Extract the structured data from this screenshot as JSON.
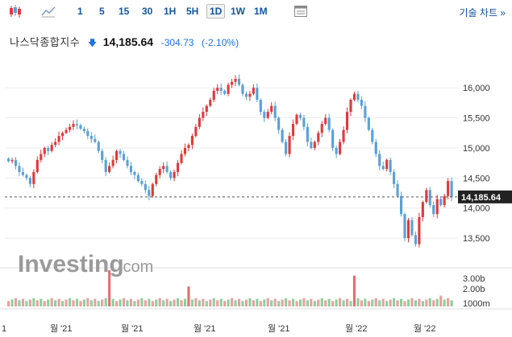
{
  "toolbar": {
    "chart_type_icon": "candlestick-icon",
    "area_chart_icon": "area-chart-icon",
    "intervals": [
      "1",
      "5",
      "15",
      "30",
      "1H",
      "5H",
      "1D",
      "1W",
      "1M"
    ],
    "active_interval": "1D",
    "table_icon": "data-table-icon",
    "tech_chart_label": "기술 차트 »"
  },
  "quote": {
    "name": "나스닥종합지수",
    "direction_icon": "down-arrow-icon",
    "price": "14,185.64",
    "change": "-304.73",
    "change_pct": "(-2.10%)"
  },
  "colors": {
    "up": "#e03a3a",
    "down": "#5aa0d8",
    "volume": "#8fcf9c",
    "volume_spike": "#e07070",
    "price_tag": "#222222"
  },
  "watermark": {
    "brand": "Investing",
    "suffix": ".com"
  },
  "chart_data": {
    "type": "candlestick",
    "y_ticks": [
      "16,000",
      "15,500",
      "15,000",
      "14,500",
      "14,000",
      "13,500"
    ],
    "ylim": [
      13100,
      16350
    ],
    "current_price_label": "14,185.64",
    "volume_ticks": [
      "3.00b",
      "2.00b",
      "1000m"
    ],
    "x_ticks": [
      "1",
      "월 '21",
      "월 '21",
      "월 '21",
      "월 '21",
      "월 '22",
      "월 '22"
    ],
    "closes": [
      14780,
      14800,
      14700,
      14600,
      14550,
      14500,
      14400,
      14600,
      14800,
      14900,
      15000,
      14950,
      15050,
      15100,
      15200,
      15250,
      15300,
      15350,
      15400,
      15380,
      15320,
      15280,
      15200,
      15150,
      15100,
      14950,
      14800,
      14600,
      14700,
      14800,
      14950,
      14900,
      14800,
      14700,
      14600,
      14550,
      14450,
      14400,
      14300,
      14200,
      14400,
      14550,
      14650,
      14700,
      14600,
      14500,
      14600,
      14750,
      14900,
      15000,
      15050,
      15200,
      15350,
      15500,
      15600,
      15700,
      15800,
      15950,
      16000,
      15950,
      15900,
      16050,
      16100,
      16150,
      16050,
      15900,
      15850,
      15900,
      16000,
      15800,
      15600,
      15500,
      15600,
      15700,
      15500,
      15300,
      15100,
      14900,
      15200,
      15400,
      15550,
      15500,
      15350,
      15100,
      15000,
      15100,
      15250,
      15400,
      15500,
      15300,
      15000,
      14900,
      15100,
      15300,
      15600,
      15800,
      15900,
      15800,
      15700,
      15500,
      15300,
      15100,
      14900,
      14700,
      14650,
      14800,
      14600,
      14400,
      14200,
      13900,
      13500,
      13800,
      13550,
      13400,
      13850,
      14100,
      14300,
      14050,
      13900,
      14150,
      14050,
      14200,
      14450,
      14185.64
    ]
  }
}
